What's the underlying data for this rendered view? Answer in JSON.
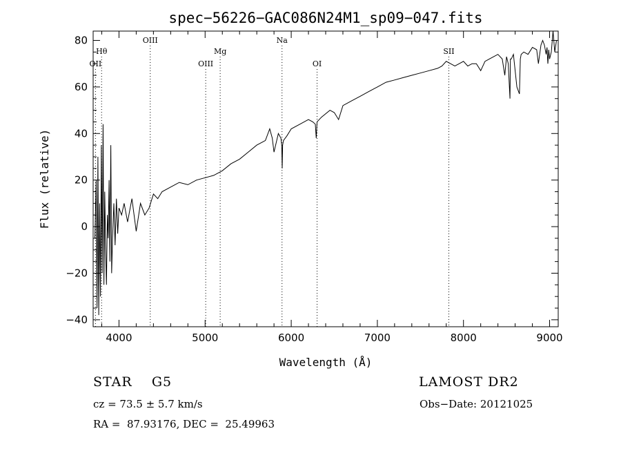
{
  "chart_data": {
    "type": "line",
    "title": "spec−56226−GAC086N24M1_sp09−047.fits",
    "xlabel": "Wavelength (Å)",
    "ylabel": "Flux (relative)",
    "xlim": [
      3700,
      9100
    ],
    "ylim": [
      -43,
      84
    ],
    "x_ticks": [
      4000,
      5000,
      6000,
      7000,
      8000,
      9000
    ],
    "x_tick_labels": [
      "4000",
      "5000",
      "6000",
      "7000",
      "8000",
      "9000"
    ],
    "x_minor_step": 200,
    "y_ticks": [
      -40,
      -20,
      0,
      20,
      40,
      60,
      80
    ],
    "y_tick_labels": [
      "−40",
      "−20",
      "0",
      "20",
      "40",
      "60",
      "80"
    ],
    "y_minor_step": 5,
    "grid": false,
    "series": [
      {
        "x": [
          3720,
          3735,
          3745,
          3755,
          3765,
          3775,
          3785,
          3795,
          3805,
          3815,
          3825,
          3835,
          3845,
          3855,
          3865,
          3875,
          3885,
          3895,
          3905,
          3915,
          3925,
          3940,
          3955,
          3970,
          3985,
          4000,
          4030,
          4060,
          4100,
          4150,
          4200,
          4250,
          4300,
          4350,
          4400,
          4450,
          4500,
          4600,
          4700,
          4800,
          4900,
          5000,
          5100,
          5200,
          5300,
          5400,
          5500,
          5600,
          5700,
          5750,
          5780,
          5800,
          5850,
          5880,
          5890,
          5895,
          5900,
          5910,
          5950,
          6000,
          6100,
          6200,
          6250,
          6280,
          6290,
          6300,
          6350,
          6450,
          6500,
          6550,
          6600,
          6700,
          6800,
          6900,
          7000,
          7100,
          7200,
          7300,
          7400,
          7500,
          7600,
          7700,
          7750,
          7800,
          7850,
          7900,
          7950,
          8000,
          8050,
          8100,
          8150,
          8200,
          8250,
          8300,
          8350,
          8400,
          8450,
          8480,
          8500,
          8520,
          8540,
          8545,
          8555,
          8580,
          8620,
          8650,
          8660,
          8670,
          8700,
          8750,
          8800,
          8850,
          8870,
          8900,
          8920,
          8940,
          8960,
          8970,
          8980,
          8990,
          9000,
          9020,
          9040,
          9060,
          9080
        ],
        "y": [
          -5,
          20,
          -35,
          30,
          -38,
          10,
          -30,
          35,
          -20,
          44,
          -25,
          15,
          -10,
          -25,
          5,
          -5,
          20,
          -15,
          35,
          -20,
          -5,
          10,
          -8,
          12,
          -3,
          8,
          5,
          10,
          2,
          12,
          -2,
          10,
          5,
          8,
          14,
          12,
          15,
          17,
          19,
          18,
          20,
          21,
          22,
          24,
          27,
          29,
          32,
          35,
          37,
          42,
          38,
          32,
          40,
          38,
          35,
          25,
          35,
          37,
          39,
          42,
          44,
          46,
          45,
          44,
          38,
          45,
          47,
          50,
          49,
          46,
          52,
          54,
          56,
          58,
          60,
          62,
          63,
          64,
          65,
          66,
          67,
          68,
          69,
          71,
          70,
          69,
          70,
          71,
          69,
          70,
          70,
          67,
          71,
          72,
          73,
          74,
          72,
          65,
          73,
          70,
          55,
          72,
          72,
          74,
          60,
          57,
          72,
          74,
          75,
          74,
          77,
          76,
          70,
          78,
          80,
          78,
          74,
          77,
          70,
          76,
          72,
          75,
          84,
          75,
          80
        ]
      }
    ],
    "line_markers": [
      {
        "label": "Hθ",
        "x": 3798,
        "row": 1
      },
      {
        "label": "OII",
        "x": 3727,
        "row": 2
      },
      {
        "label": "OIII",
        "x": 4363,
        "row": 0
      },
      {
        "label": "OIII",
        "x": 5007,
        "row": 2
      },
      {
        "label": "Mg",
        "x": 5175,
        "row": 1
      },
      {
        "label": "Na",
        "x": 5893,
        "row": 0
      },
      {
        "label": "OI",
        "x": 6300,
        "row": 2
      },
      {
        "label": "SII",
        "x": 7830,
        "row": 1
      }
    ]
  },
  "info": {
    "class_line": "STAR    G5",
    "survey": "LAMOST DR2",
    "cz_line": "cz = 73.5 ± 5.7 km/s",
    "obs_date": "Obs−Date: 20121025",
    "radec_line": "RA =  87.93176, DEC =  25.49963"
  }
}
